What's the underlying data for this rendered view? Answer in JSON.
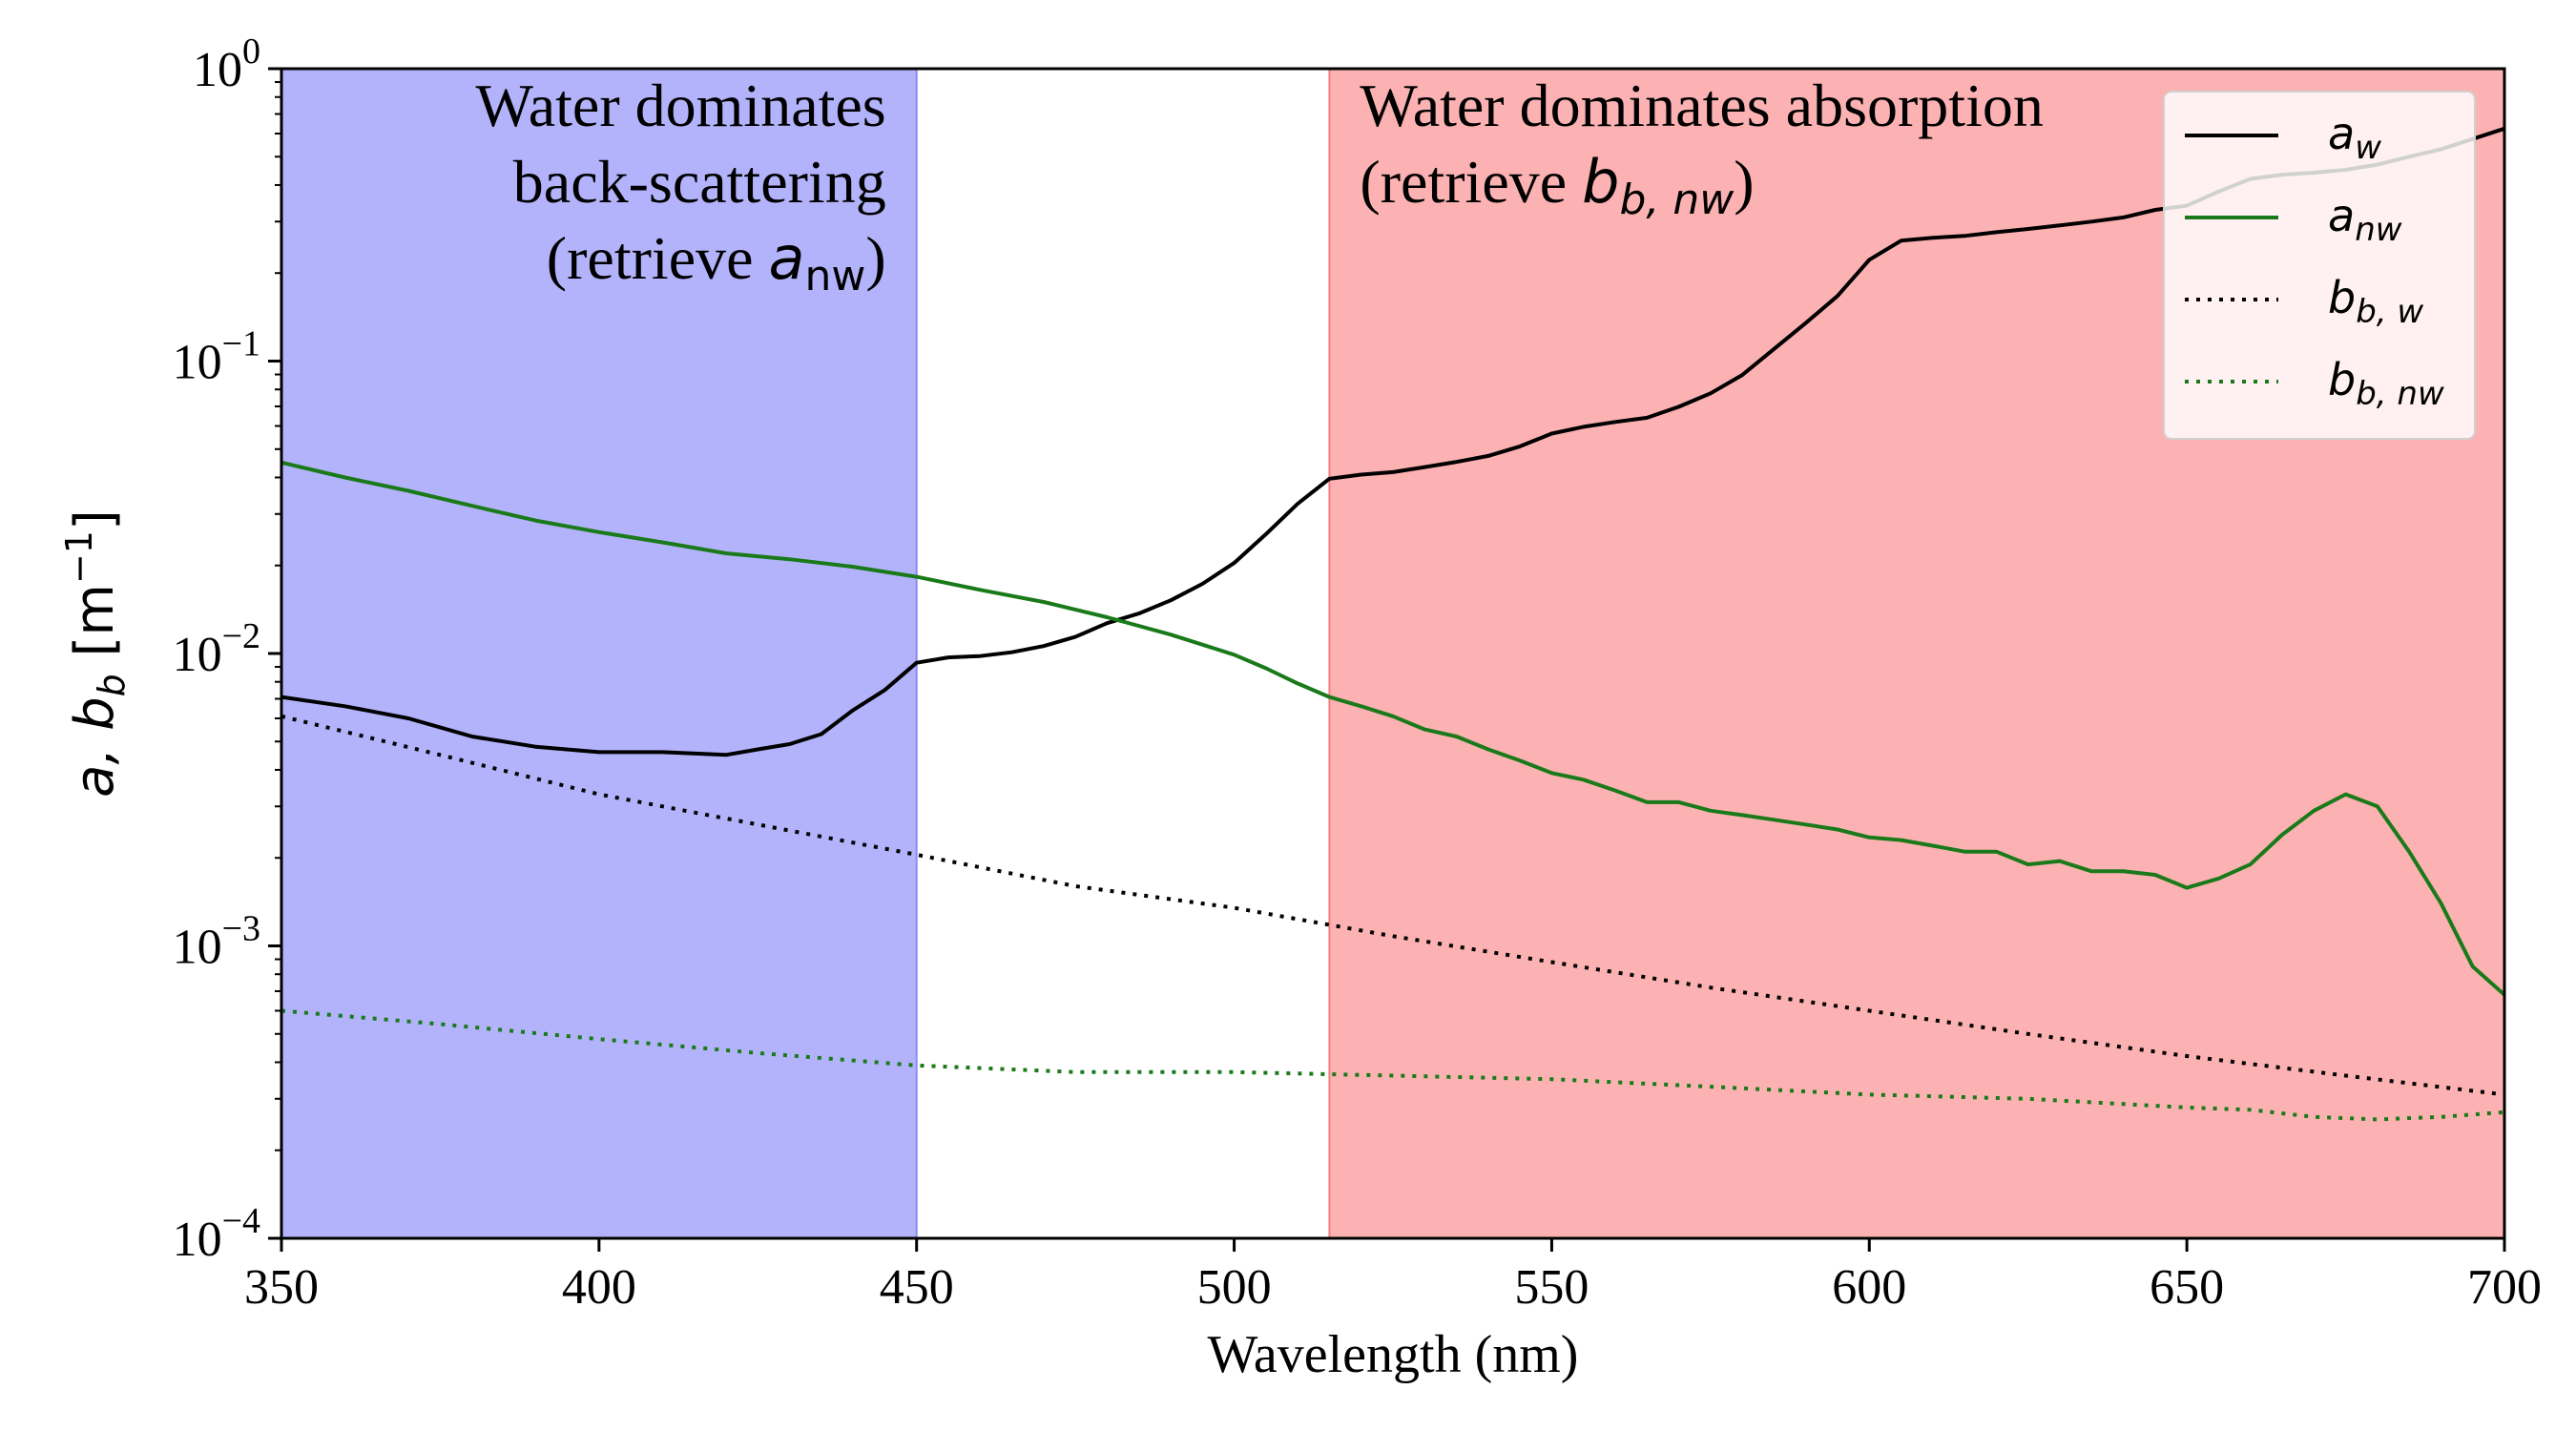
{
  "chart_data": {
    "type": "line",
    "yscale": "log",
    "xlabel": "Wavelength (nm)",
    "ylabel": {
      "main": "a, b",
      "sub": "b",
      "unit_open": " [m",
      "unit_sup": "−1",
      "unit_close": "]"
    },
    "xlim": [
      350,
      700
    ],
    "ylim": [
      0.0001,
      1
    ],
    "xticks": [
      {
        "value": 350,
        "label": "350"
      },
      {
        "value": 400,
        "label": "400"
      },
      {
        "value": 450,
        "label": "450"
      },
      {
        "value": 500,
        "label": "500"
      },
      {
        "value": 550,
        "label": "550"
      },
      {
        "value": 600,
        "label": "600"
      },
      {
        "value": 650,
        "label": "650"
      },
      {
        "value": 700,
        "label": "700"
      }
    ],
    "yticks": [
      {
        "value": 0.0001,
        "base": "10",
        "exp": "−4"
      },
      {
        "value": 0.001,
        "base": "10",
        "exp": "−3"
      },
      {
        "value": 0.01,
        "base": "10",
        "exp": "−2"
      },
      {
        "value": 0.1,
        "base": "10",
        "exp": "−1"
      },
      {
        "value": 1,
        "base": "10",
        "exp": "0"
      }
    ],
    "regions": [
      {
        "name": "water-backscatter-region",
        "x_range": [
          350,
          450
        ],
        "color": "#b3b3fb",
        "edge_color": "#8a8af5",
        "align": "right",
        "lines": [
          "Water dominates",
          "back-scattering",
          "(retrieve "
        ],
        "math_main": "a",
        "math_sub": "nw",
        "math_close": ")"
      },
      {
        "name": "water-absorption-region",
        "x_range": [
          515,
          700
        ],
        "color": "#fcb2b2",
        "edge_color": "#f08080",
        "align": "left",
        "lines": [
          "Water dominates absorption",
          "(retrieve "
        ],
        "math_main": "b",
        "math_sub": "b, nw",
        "math_close": ")"
      }
    ],
    "series": [
      {
        "name": "a_w",
        "label_main": "a",
        "label_sub": "w",
        "color": "#000000",
        "style": "solid",
        "x": [
          350,
          360,
          370,
          380,
          390,
          400,
          410,
          420,
          425,
          430,
          435,
          440,
          445,
          450,
          455,
          460,
          465,
          470,
          475,
          480,
          485,
          490,
          495,
          500,
          505,
          510,
          515,
          520,
          525,
          530,
          535,
          540,
          545,
          550,
          555,
          560,
          565,
          570,
          575,
          580,
          585,
          590,
          595,
          600,
          605,
          610,
          615,
          620,
          625,
          630,
          635,
          640,
          645,
          650,
          655,
          660,
          665,
          670,
          675,
          680,
          685,
          690,
          695,
          700
        ],
        "values": [
          0.0071,
          0.0066,
          0.006,
          0.0052,
          0.0048,
          0.0046,
          0.0046,
          0.0045,
          0.0047,
          0.0049,
          0.0053,
          0.0064,
          0.0075,
          0.0093,
          0.0097,
          0.0098,
          0.0101,
          0.0106,
          0.0114,
          0.0127,
          0.0137,
          0.0152,
          0.0173,
          0.0204,
          0.0256,
          0.0325,
          0.0396,
          0.0409,
          0.0417,
          0.0434,
          0.0452,
          0.0474,
          0.0511,
          0.0565,
          0.0596,
          0.0619,
          0.064,
          0.0698,
          0.0776,
          0.0896,
          0.11,
          0.135,
          0.167,
          0.222,
          0.258,
          0.264,
          0.268,
          0.276,
          0.283,
          0.291,
          0.3,
          0.31,
          0.329,
          0.34,
          0.38,
          0.42,
          0.434,
          0.441,
          0.451,
          0.47,
          0.5,
          0.53,
          0.575,
          0.624
        ]
      },
      {
        "name": "a_nw",
        "label_main": "a",
        "label_sub": "nw",
        "color": "#1a7a1a",
        "style": "solid",
        "x": [
          350,
          360,
          370,
          380,
          390,
          400,
          410,
          420,
          430,
          440,
          450,
          460,
          470,
          480,
          490,
          500,
          505,
          510,
          515,
          520,
          525,
          530,
          535,
          540,
          545,
          550,
          555,
          560,
          565,
          570,
          575,
          580,
          585,
          590,
          595,
          600,
          605,
          610,
          615,
          620,
          625,
          630,
          635,
          640,
          645,
          650,
          655,
          660,
          665,
          670,
          675,
          680,
          685,
          690,
          695,
          700
        ],
        "values": [
          0.045,
          0.04,
          0.036,
          0.032,
          0.0285,
          0.026,
          0.024,
          0.022,
          0.021,
          0.0198,
          0.0183,
          0.0165,
          0.015,
          0.0133,
          0.0116,
          0.0099,
          0.0089,
          0.0079,
          0.0071,
          0.0066,
          0.0061,
          0.0055,
          0.0052,
          0.0047,
          0.0043,
          0.0039,
          0.0037,
          0.0034,
          0.0031,
          0.0031,
          0.0029,
          0.0028,
          0.0027,
          0.0026,
          0.0025,
          0.00235,
          0.0023,
          0.0022,
          0.0021,
          0.0021,
          0.0019,
          0.00195,
          0.0018,
          0.0018,
          0.00175,
          0.00158,
          0.0017,
          0.0019,
          0.0024,
          0.0029,
          0.0033,
          0.003,
          0.0021,
          0.0014,
          0.00085,
          0.00068
        ]
      },
      {
        "name": "b_bw",
        "label_main": "b",
        "label_sub": "b, w",
        "color": "#000000",
        "style": "dotted",
        "x": [
          350,
          375,
          400,
          425,
          450,
          475,
          500,
          525,
          550,
          575,
          600,
          625,
          650,
          675,
          700
        ],
        "values": [
          0.0061,
          0.0045,
          0.0033,
          0.0026,
          0.00205,
          0.0016,
          0.00135,
          0.00108,
          0.00088,
          0.00072,
          0.0006,
          0.0005,
          0.00042,
          0.00036,
          0.00031
        ]
      },
      {
        "name": "b_bnw",
        "label_main": "b",
        "label_sub": "b, nw",
        "color": "#1a7a1a",
        "style": "dotted",
        "x": [
          350,
          375,
          400,
          425,
          450,
          475,
          500,
          525,
          550,
          575,
          600,
          625,
          650,
          660,
          670,
          680,
          690,
          700
        ],
        "values": [
          0.0006,
          0.00054,
          0.00048,
          0.00043,
          0.00039,
          0.00037,
          0.00037,
          0.00036,
          0.00035,
          0.00033,
          0.00031,
          0.0003,
          0.00028,
          0.000275,
          0.00026,
          0.000255,
          0.00026,
          0.00027
        ]
      }
    ],
    "legend_position": "top-right"
  }
}
